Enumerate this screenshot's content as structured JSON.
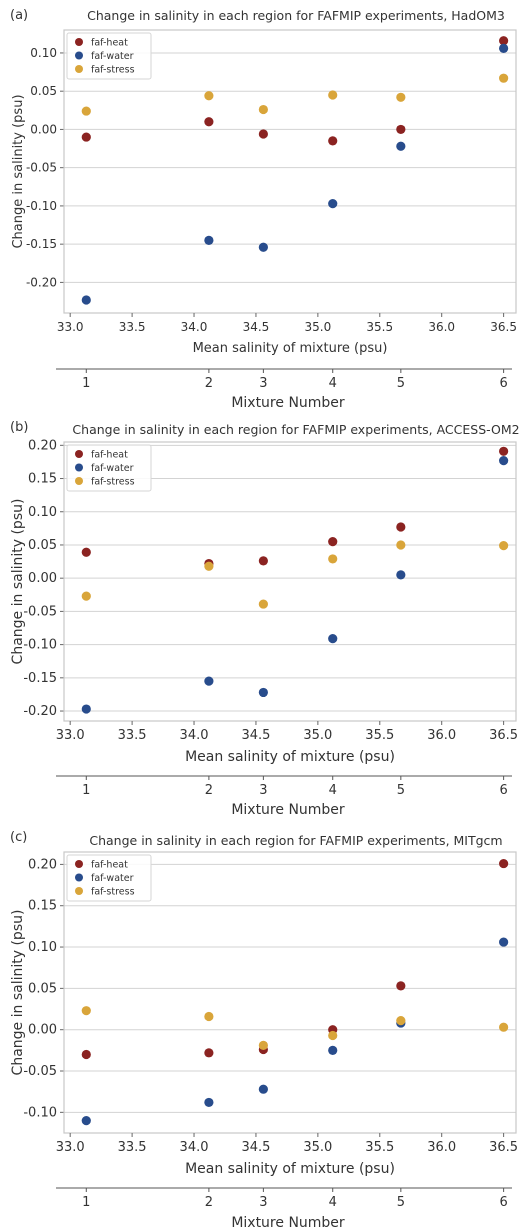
{
  "colors": {
    "faf-heat": "#8b2321",
    "faf-water": "#284c8c",
    "faf-stress": "#d9a53a"
  },
  "chart_data": [
    {
      "type": "scatter",
      "panel_label": "(a)",
      "title": "Change in salinity in each region for FAFMIP experiments, HadOM3",
      "xlabel": "Mean salinity of mixture (psu)",
      "ylabel": "Change in salinity (psu)",
      "secondary_xlabel": "Mixture Number",
      "xlim": [
        32.95,
        36.6
      ],
      "ylim": [
        -0.24,
        0.13
      ],
      "xticks": [
        "33.0",
        "33.5",
        "34.0",
        "34.5",
        "35.0",
        "35.5",
        "36.0",
        "36.5"
      ],
      "yticks": [
        "-0.20",
        "-0.15",
        "-0.10",
        "-0.05",
        "0.00",
        "0.05",
        "0.10"
      ],
      "secondary_ticks": [
        "1",
        "2",
        "3",
        "4",
        "5",
        "6"
      ],
      "x": [
        33.13,
        34.12,
        34.56,
        35.12,
        35.67,
        36.5
      ],
      "series": [
        {
          "name": "faf-heat",
          "values": [
            -0.01,
            0.01,
            -0.006,
            -0.015,
            0.0,
            0.116
          ]
        },
        {
          "name": "faf-water",
          "values": [
            -0.223,
            -0.145,
            -0.154,
            -0.097,
            -0.022,
            0.106
          ]
        },
        {
          "name": "faf-stress",
          "values": [
            0.024,
            0.044,
            0.026,
            0.045,
            0.042,
            0.067
          ]
        }
      ],
      "grid": "y",
      "legend": "top-left"
    },
    {
      "type": "scatter",
      "panel_label": "(b)",
      "title": "Change in salinity in each region for FAFMIP experiments, ACCESS-OM2",
      "xlabel": "Mean salinity of mixture (psu)",
      "ylabel": "Change in salinity (psu)",
      "secondary_xlabel": "Mixture Number",
      "xlim": [
        32.95,
        36.6
      ],
      "ylim": [
        -0.215,
        0.205
      ],
      "xticks": [
        "33.0",
        "33.5",
        "34.0",
        "34.5",
        "35.0",
        "35.5",
        "36.0",
        "36.5"
      ],
      "yticks": [
        "-0.20",
        "-0.15",
        "-0.10",
        "-0.05",
        "0.00",
        "0.05",
        "0.10",
        "0.15",
        "0.20"
      ],
      "secondary_ticks": [
        "1",
        "2",
        "3",
        "4",
        "5",
        "6"
      ],
      "x": [
        33.13,
        34.12,
        34.56,
        35.12,
        35.67,
        36.5
      ],
      "series": [
        {
          "name": "faf-heat",
          "values": [
            0.039,
            0.022,
            0.026,
            0.055,
            0.077,
            0.191
          ]
        },
        {
          "name": "faf-water",
          "values": [
            -0.197,
            -0.155,
            -0.172,
            -0.091,
            0.005,
            0.177
          ]
        },
        {
          "name": "faf-stress",
          "values": [
            -0.027,
            0.018,
            -0.039,
            0.029,
            0.05,
            0.049
          ]
        }
      ],
      "grid": "y",
      "legend": "top-left"
    },
    {
      "type": "scatter",
      "panel_label": "(c)",
      "title": "Change in salinity in each region for FAFMIP experiments, MITgcm",
      "xlabel": "Mean salinity of mixture (psu)",
      "ylabel": "Change in salinity (psu)",
      "secondary_xlabel": "Mixture Number",
      "xlim": [
        32.95,
        36.6
      ],
      "ylim": [
        -0.125,
        0.215
      ],
      "xticks": [
        "33.0",
        "33.5",
        "34.0",
        "34.5",
        "35.0",
        "35.5",
        "36.0",
        "36.5"
      ],
      "yticks": [
        "-0.10",
        "-0.05",
        "0.00",
        "0.05",
        "0.10",
        "0.15",
        "0.20"
      ],
      "secondary_ticks": [
        "1",
        "2",
        "3",
        "4",
        "5",
        "6"
      ],
      "x": [
        33.13,
        34.12,
        34.56,
        35.12,
        35.67,
        36.5
      ],
      "series": [
        {
          "name": "faf-heat",
          "values": [
            -0.03,
            -0.028,
            -0.024,
            0.0,
            0.053,
            0.201
          ]
        },
        {
          "name": "faf-water",
          "values": [
            -0.11,
            -0.088,
            -0.072,
            -0.025,
            0.008,
            0.106
          ]
        },
        {
          "name": "faf-stress",
          "values": [
            0.023,
            0.016,
            -0.019,
            -0.007,
            0.011,
            0.003
          ]
        }
      ],
      "grid": "y",
      "legend": "top-left"
    }
  ]
}
